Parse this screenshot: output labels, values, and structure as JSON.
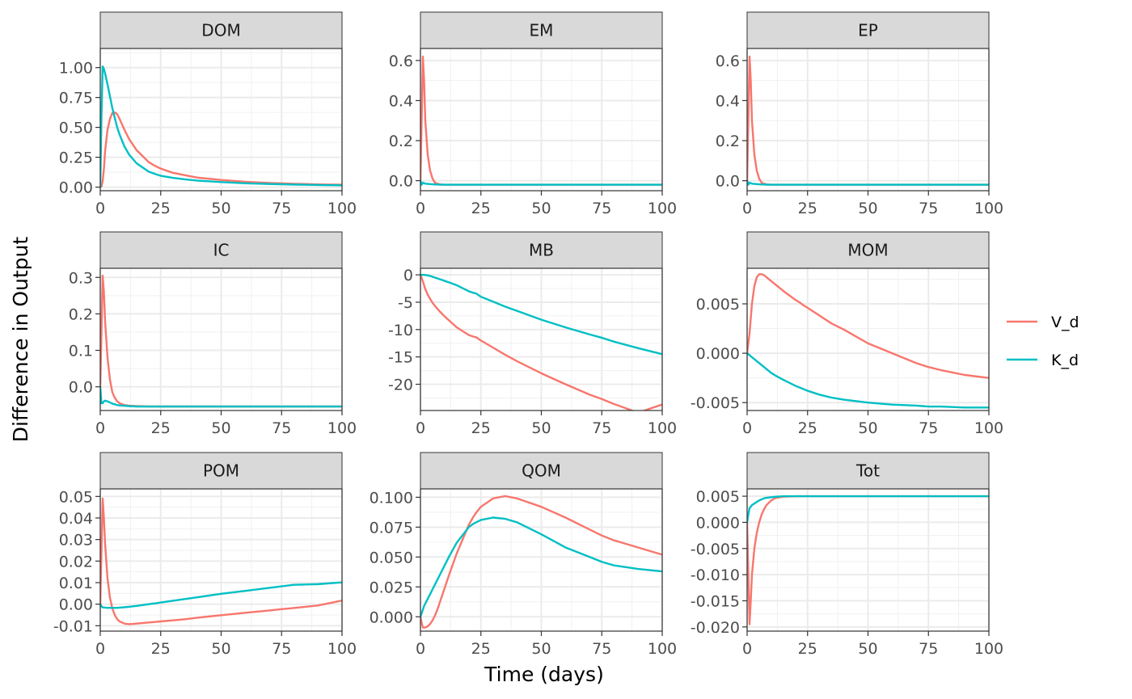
{
  "chart_data": {
    "type": "line",
    "layout": "facet-grid 3x3",
    "xlabel": "Time (days)",
    "ylabel": "Difference in Output",
    "xlim": [
      0,
      100
    ],
    "x_ticks": [
      0,
      25,
      50,
      75,
      100
    ],
    "legend": {
      "placement": "right",
      "entries": [
        "V_d",
        "K_d"
      ]
    },
    "colors": {
      "V_d": "#F8766D",
      "K_d": "#00BFC4"
    },
    "grid": true,
    "x": [
      0,
      0.5,
      1,
      1.5,
      2,
      3,
      4,
      5,
      6,
      7,
      8,
      10,
      12,
      15,
      20,
      22,
      23,
      25,
      30,
      35,
      40,
      50,
      60,
      70,
      75,
      80,
      90,
      100
    ],
    "facets": [
      {
        "label": "DOM",
        "ylim": [
          -0.03,
          1.16
        ],
        "y_ticks": [
          0.0,
          0.25,
          0.5,
          0.75,
          1.0
        ],
        "y_tick_labels": [
          "0.00",
          "0.25",
          "0.50",
          "0.75",
          "1.00"
        ],
        "series": [
          {
            "name": "V_d",
            "values": [
              0,
              0.005,
              0.05,
              0.15,
              0.3,
              0.48,
              0.57,
              0.62,
              0.625,
              0.61,
              0.57,
              0.48,
              0.4,
              0.31,
              0.21,
              0.185,
              0.175,
              0.155,
              0.12,
              0.1,
              0.08,
              0.06,
              0.045,
              0.035,
              0.032,
              0.028,
              0.023,
              0.02
            ]
          },
          {
            "name": "K_d",
            "values": [
              0,
              0.6,
              1.01,
              0.99,
              0.95,
              0.86,
              0.76,
              0.66,
              0.58,
              0.5,
              0.44,
              0.34,
              0.27,
              0.2,
              0.13,
              0.115,
              0.108,
              0.095,
              0.078,
              0.065,
              0.055,
              0.042,
              0.032,
              0.026,
              0.024,
              0.021,
              0.018,
              0.015
            ]
          }
        ]
      },
      {
        "label": "EM",
        "ylim": [
          -0.05,
          0.66
        ],
        "y_ticks": [
          0.0,
          0.2,
          0.4,
          0.6
        ],
        "y_tick_labels": [
          "0.0",
          "0.2",
          "0.4",
          "0.6"
        ],
        "series": [
          {
            "name": "V_d",
            "values": [
              0,
              0.3,
              0.62,
              0.5,
              0.3,
              0.13,
              0.05,
              0.01,
              -0.01,
              -0.015,
              -0.018,
              -0.02,
              -0.02,
              -0.02,
              -0.02,
              -0.02,
              -0.02,
              -0.02,
              -0.02,
              -0.02,
              -0.02,
              -0.02,
              -0.02,
              -0.02,
              -0.02,
              -0.02,
              -0.02,
              -0.02
            ]
          },
          {
            "name": "K_d",
            "values": [
              0,
              -0.02,
              -0.01,
              -0.012,
              -0.015,
              -0.016,
              -0.017,
              -0.018,
              -0.019,
              -0.019,
              -0.02,
              -0.02,
              -0.02,
              -0.02,
              -0.02,
              -0.02,
              -0.02,
              -0.02,
              -0.02,
              -0.02,
              -0.02,
              -0.02,
              -0.02,
              -0.02,
              -0.02,
              -0.02,
              -0.02,
              -0.02
            ]
          }
        ]
      },
      {
        "label": "EP",
        "ylim": [
          -0.05,
          0.66
        ],
        "y_ticks": [
          0.0,
          0.2,
          0.4,
          0.6
        ],
        "y_tick_labels": [
          "0.0",
          "0.2",
          "0.4",
          "0.6"
        ],
        "series": [
          {
            "name": "V_d",
            "values": [
              0,
              0.3,
              0.62,
              0.5,
              0.3,
              0.13,
              0.05,
              0.01,
              -0.01,
              -0.015,
              -0.018,
              -0.02,
              -0.02,
              -0.02,
              -0.02,
              -0.02,
              -0.02,
              -0.02,
              -0.02,
              -0.02,
              -0.02,
              -0.02,
              -0.02,
              -0.02,
              -0.02,
              -0.02,
              -0.02,
              -0.02
            ]
          },
          {
            "name": "K_d",
            "values": [
              0,
              -0.02,
              -0.01,
              -0.012,
              -0.015,
              -0.016,
              -0.017,
              -0.018,
              -0.019,
              -0.019,
              -0.02,
              -0.02,
              -0.02,
              -0.02,
              -0.02,
              -0.02,
              -0.02,
              -0.02,
              -0.02,
              -0.02,
              -0.02,
              -0.02,
              -0.02,
              -0.02,
              -0.02,
              -0.02,
              -0.02,
              -0.02
            ]
          }
        ]
      },
      {
        "label": "IC",
        "ylim": [
          -0.065,
          0.325
        ],
        "y_ticks": [
          0.0,
          0.1,
          0.2,
          0.3
        ],
        "y_tick_labels": [
          "0.0",
          "0.1",
          "0.2",
          "0.3"
        ],
        "series": [
          {
            "name": "V_d",
            "values": [
              0,
              0.15,
              0.305,
              0.26,
              0.18,
              0.08,
              0.02,
              -0.015,
              -0.03,
              -0.04,
              -0.045,
              -0.05,
              -0.052,
              -0.053,
              -0.054,
              -0.054,
              -0.054,
              -0.054,
              -0.054,
              -0.054,
              -0.054,
              -0.054,
              -0.054,
              -0.054,
              -0.054,
              -0.054,
              -0.054,
              -0.054
            ]
          },
          {
            "name": "K_d",
            "values": [
              0,
              -0.045,
              -0.045,
              -0.04,
              -0.038,
              -0.04,
              -0.043,
              -0.046,
              -0.048,
              -0.05,
              -0.051,
              -0.052,
              -0.053,
              -0.054,
              -0.054,
              -0.054,
              -0.054,
              -0.054,
              -0.054,
              -0.054,
              -0.054,
              -0.054,
              -0.054,
              -0.054,
              -0.054,
              -0.054,
              -0.054,
              -0.054
            ]
          }
        ]
      },
      {
        "label": "MB",
        "ylim": [
          -24.8,
          1.2
        ],
        "y_ticks": [
          0,
          -5,
          -10,
          -15,
          -20
        ],
        "y_tick_labels": [
          "0",
          "-5",
          "-10",
          "-15",
          "-20"
        ],
        "series": [
          {
            "name": "V_d",
            "values": [
              0,
              -0.6,
              -1.2,
              -1.9,
              -2.6,
              -3.6,
              -4.4,
              -5.1,
              -5.7,
              -6.2,
              -6.7,
              -7.6,
              -8.4,
              -9.6,
              -11.0,
              -11.3,
              -11.4,
              -12.0,
              -13.3,
              -14.6,
              -15.8,
              -18.0,
              -20.0,
              -21.9,
              -22.7,
              -23.6,
              -25.2,
              -23.7
            ]
          },
          {
            "name": "K_d",
            "values": [
              0,
              0,
              0,
              0,
              -0.02,
              -0.1,
              -0.2,
              -0.35,
              -0.5,
              -0.65,
              -0.8,
              -1.1,
              -1.4,
              -1.9,
              -3.0,
              -3.3,
              -3.4,
              -4.0,
              -4.9,
              -5.8,
              -6.6,
              -8.2,
              -9.6,
              -10.9,
              -11.5,
              -12.2,
              -13.4,
              -14.5
            ]
          }
        ]
      },
      {
        "label": "MOM",
        "ylim": [
          -0.0058,
          0.0086
        ],
        "y_ticks": [
          0.005,
          0.0,
          -0.005
        ],
        "y_tick_labels": [
          "0.005",
          "0.000",
          "-0.005"
        ],
        "series": [
          {
            "name": "V_d",
            "values": [
              0,
              0.001,
              0.002,
              0.0035,
              0.005,
              0.0068,
              0.0077,
              0.008,
              0.008,
              0.0079,
              0.0077,
              0.0073,
              0.0069,
              0.0063,
              0.0054,
              0.0051,
              0.0049,
              0.0046,
              0.0038,
              0.003,
              0.0024,
              0.001,
              0.0,
              -0.001,
              -0.0014,
              -0.0017,
              -0.0022,
              -0.0025
            ]
          },
          {
            "name": "K_d",
            "values": [
              0,
              -0.0001,
              -0.0002,
              -0.0003,
              -0.0004,
              -0.0006,
              -0.0008,
              -0.001,
              -0.0012,
              -0.0014,
              -0.0016,
              -0.002,
              -0.0023,
              -0.0027,
              -0.0033,
              -0.0035,
              -0.0036,
              -0.0038,
              -0.0042,
              -0.0045,
              -0.0047,
              -0.005,
              -0.0052,
              -0.0053,
              -0.0054,
              -0.0054,
              -0.0055,
              -0.0055
            ]
          }
        ]
      },
      {
        "label": "POM",
        "ylim": [
          -0.0125,
          0.0535
        ],
        "y_ticks": [
          0.05,
          0.04,
          0.03,
          0.02,
          0.01,
          0.0,
          -0.01
        ],
        "y_tick_labels": [
          "0.05",
          "0.04",
          "0.03",
          "0.02",
          "0.01",
          "0.00",
          "-0.01"
        ],
        "series": [
          {
            "name": "V_d",
            "values": [
              0,
              0.025,
              0.049,
              0.04,
              0.028,
              0.012,
              0.003,
              -0.002,
              -0.005,
              -0.007,
              -0.008,
              -0.009,
              -0.0093,
              -0.009,
              -0.0085,
              -0.0083,
              -0.0082,
              -0.008,
              -0.0075,
              -0.007,
              -0.0063,
              -0.0051,
              -0.004,
              -0.0029,
              -0.0023,
              -0.0018,
              -0.0006,
              0.0017
            ]
          },
          {
            "name": "K_d",
            "values": [
              0,
              -0.001,
              -0.0015,
              -0.0015,
              -0.0016,
              -0.0017,
              -0.0017,
              -0.0017,
              -0.0017,
              -0.0017,
              -0.0016,
              -0.0014,
              -0.0012,
              -0.0008,
              0.0,
              0.0003,
              0.0004,
              0.0008,
              0.0016,
              0.0024,
              0.0032,
              0.0048,
              0.0062,
              0.0076,
              0.0083,
              0.009,
              0.0093,
              0.0101
            ]
          }
        ]
      },
      {
        "label": "QOM",
        "ylim": [
          -0.012,
          0.107
        ],
        "y_ticks": [
          0.1,
          0.075,
          0.05,
          0.025,
          0.0
        ],
        "y_tick_labels": [
          "0.100",
          "0.075",
          "0.050",
          "0.025",
          "0.000"
        ],
        "series": [
          {
            "name": "V_d",
            "values": [
              0,
              -0.005,
              -0.009,
              -0.009,
              -0.009,
              -0.008,
              -0.006,
              -0.003,
              0.001,
              0.006,
              0.012,
              0.024,
              0.036,
              0.053,
              0.077,
              0.084,
              0.087,
              0.092,
              0.099,
              0.101,
              0.099,
              0.092,
              0.083,
              0.073,
              0.068,
              0.064,
              0.058,
              0.052
            ]
          },
          {
            "name": "K_d",
            "values": [
              0,
              0.003,
              0.006,
              0.009,
              0.011,
              0.015,
              0.019,
              0.023,
              0.027,
              0.031,
              0.035,
              0.043,
              0.051,
              0.062,
              0.075,
              0.078,
              0.079,
              0.081,
              0.083,
              0.082,
              0.079,
              0.069,
              0.058,
              0.05,
              0.046,
              0.043,
              0.04,
              0.038
            ]
          }
        ]
      },
      {
        "label": "Tot",
        "ylim": [
          -0.0208,
          0.0064
        ],
        "y_ticks": [
          0.005,
          0.0,
          -0.005,
          -0.01,
          -0.015,
          -0.02
        ],
        "y_tick_labels": [
          "0.005",
          "0.000",
          "-0.005",
          "-0.010",
          "-0.015",
          "-0.020"
        ],
        "series": [
          {
            "name": "V_d",
            "values": [
              0,
              -0.01,
              -0.0195,
              -0.015,
              -0.01,
              -0.005,
              -0.002,
              0.0,
              0.0015,
              0.0025,
              0.0033,
              0.0042,
              0.0047,
              0.0049,
              0.005,
              0.005,
              0.005,
              0.005,
              0.005,
              0.005,
              0.005,
              0.005,
              0.005,
              0.005,
              0.005,
              0.005,
              0.005,
              0.005
            ]
          },
          {
            "name": "K_d",
            "values": [
              0,
              0.0015,
              0.0027,
              0.003,
              0.0033,
              0.0036,
              0.0039,
              0.0042,
              0.0044,
              0.0046,
              0.0047,
              0.0048,
              0.0049,
              0.005,
              0.005,
              0.005,
              0.005,
              0.005,
              0.005,
              0.005,
              0.005,
              0.005,
              0.005,
              0.005,
              0.005,
              0.005,
              0.005,
              0.005
            ]
          }
        ]
      }
    ]
  }
}
